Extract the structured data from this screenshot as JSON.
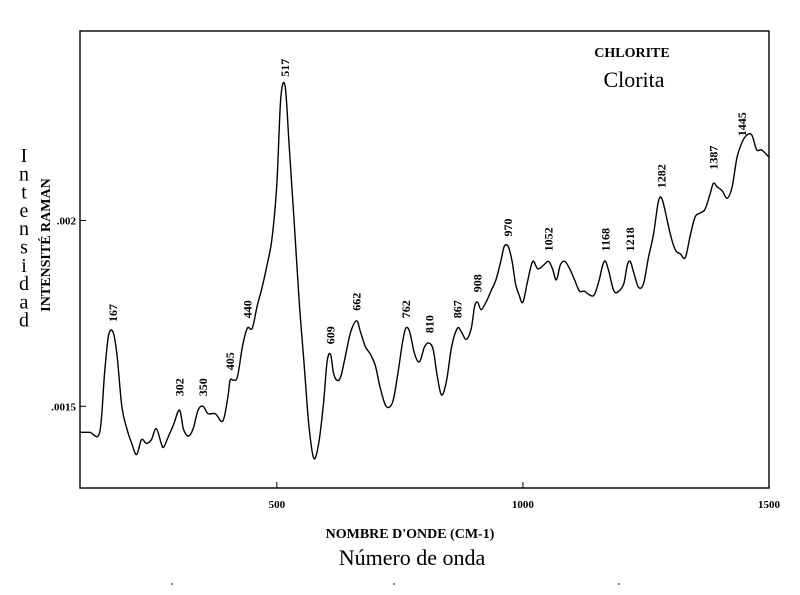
{
  "chart_data": {
    "type": "line",
    "title": "CHLORITE",
    "subtitle": "Clorita",
    "xlabel": "NOMBRE D'ONDE (CM-1)",
    "xlabel_es": "Número de onda",
    "ylabel": "INTENSITÉ RAMAN",
    "ylabel_es": "Intensidad",
    "xlim": [
      100,
      1500
    ],
    "ylim": [
      0.00128,
      0.00251
    ],
    "x_ticks": [
      500,
      1000,
      1500
    ],
    "x_tick_labels": [
      "500",
      "1000",
      "1500"
    ],
    "y_ticks": [
      0.0015,
      0.002
    ],
    "y_tick_labels": [
      ".0015",
      ".002"
    ],
    "grid": false,
    "line_color": "#000000",
    "peak_labels": [
      {
        "x": 167,
        "y": 0.0017,
        "label": "167"
      },
      {
        "x": 302,
        "y": 0.0015,
        "label": "302"
      },
      {
        "x": 350,
        "y": 0.0015,
        "label": "350"
      },
      {
        "x": 405,
        "y": 0.00157,
        "label": "405"
      },
      {
        "x": 440,
        "y": 0.00171,
        "label": "440"
      },
      {
        "x": 517,
        "y": 0.00236,
        "label": "517"
      },
      {
        "x": 609,
        "y": 0.00164,
        "label": "609"
      },
      {
        "x": 662,
        "y": 0.00173,
        "label": "662"
      },
      {
        "x": 762,
        "y": 0.00171,
        "label": "762"
      },
      {
        "x": 810,
        "y": 0.00167,
        "label": "810"
      },
      {
        "x": 867,
        "y": 0.00171,
        "label": "867"
      },
      {
        "x": 908,
        "y": 0.00178,
        "label": "908"
      },
      {
        "x": 970,
        "y": 0.00193,
        "label": "970"
      },
      {
        "x": 1052,
        "y": 0.00189,
        "label": "1052"
      },
      {
        "x": 1168,
        "y": 0.00189,
        "label": "1168"
      },
      {
        "x": 1218,
        "y": 0.00189,
        "label": "1218"
      },
      {
        "x": 1282,
        "y": 0.00206,
        "label": "1282"
      },
      {
        "x": 1387,
        "y": 0.00211,
        "label": "1387"
      },
      {
        "x": 1445,
        "y": 0.0022,
        "label": "1445"
      }
    ],
    "series": [
      {
        "x": [
          100,
          120,
          140,
          150,
          158,
          167,
          175,
          185,
          195,
          205,
          215,
          225,
          235,
          245,
          255,
          265,
          270,
          280,
          290,
          302,
          310,
          320,
          330,
          340,
          350,
          360,
          375,
          390,
          400,
          405,
          412,
          420,
          430,
          440,
          450,
          460,
          470,
          480,
          490,
          500,
          508,
          517,
          525,
          535,
          545,
          555,
          565,
          575,
          585,
          595,
          602,
          609,
          615,
          622,
          630,
          640,
          650,
          662,
          670,
          680,
          690,
          700,
          710,
          722,
          735,
          745,
          755,
          762,
          770,
          780,
          790,
          800,
          810,
          818,
          826,
          835,
          845,
          855,
          867,
          875,
          885,
          895,
          902,
          908,
          915,
          925,
          935,
          945,
          955,
          962,
          970,
          978,
          985,
          992,
          1000,
          1010,
          1020,
          1030,
          1042,
          1052,
          1060,
          1068,
          1076,
          1085,
          1095,
          1105,
          1115,
          1125,
          1135,
          1145,
          1155,
          1162,
          1168,
          1175,
          1185,
          1195,
          1205,
          1212,
          1218,
          1225,
          1235,
          1245,
          1255,
          1265,
          1275,
          1282,
          1290,
          1300,
          1310,
          1320,
          1330,
          1340,
          1350,
          1360,
          1370,
          1380,
          1387,
          1395,
          1405,
          1415,
          1425,
          1435,
          1445,
          1455,
          1465,
          1475,
          1485,
          1500
        ],
        "y": [
          0.00143,
          0.00143,
          0.00143,
          0.00159,
          0.00169,
          0.0017,
          0.00164,
          0.0015,
          0.00144,
          0.0014,
          0.00137,
          0.00141,
          0.0014,
          0.00141,
          0.00144,
          0.0014,
          0.00139,
          0.00142,
          0.00145,
          0.00149,
          0.00144,
          0.00142,
          0.00144,
          0.00149,
          0.0015,
          0.00148,
          0.00148,
          0.00146,
          0.00152,
          0.00157,
          0.00157,
          0.00158,
          0.00166,
          0.00171,
          0.00171,
          0.00177,
          0.00182,
          0.00188,
          0.00195,
          0.0021,
          0.00233,
          0.00236,
          0.0022,
          0.002,
          0.00179,
          0.00162,
          0.00145,
          0.00136,
          0.0014,
          0.00151,
          0.00162,
          0.00164,
          0.00159,
          0.00157,
          0.00158,
          0.00164,
          0.0017,
          0.00173,
          0.0017,
          0.00166,
          0.00164,
          0.00161,
          0.00155,
          0.0015,
          0.00151,
          0.00158,
          0.00167,
          0.00171,
          0.0017,
          0.00164,
          0.00162,
          0.00166,
          0.00167,
          0.00165,
          0.00158,
          0.00153,
          0.00157,
          0.00166,
          0.00171,
          0.0017,
          0.00168,
          0.00171,
          0.00177,
          0.00178,
          0.00176,
          0.00178,
          0.00181,
          0.00184,
          0.00189,
          0.00193,
          0.00193,
          0.00189,
          0.00183,
          0.0018,
          0.00178,
          0.00184,
          0.00189,
          0.00187,
          0.00188,
          0.00189,
          0.00187,
          0.00184,
          0.00188,
          0.00189,
          0.00187,
          0.00184,
          0.00181,
          0.00181,
          0.0018,
          0.0018,
          0.00184,
          0.00188,
          0.00189,
          0.00186,
          0.00181,
          0.00181,
          0.00183,
          0.00188,
          0.00189,
          0.00186,
          0.00182,
          0.00183,
          0.0019,
          0.00196,
          0.00205,
          0.00206,
          0.00202,
          0.00196,
          0.00192,
          0.00191,
          0.0019,
          0.00196,
          0.00201,
          0.00202,
          0.00203,
          0.00207,
          0.0021,
          0.00209,
          0.00208,
          0.00206,
          0.00209,
          0.00217,
          0.00221,
          0.00223,
          0.00223,
          0.00219,
          0.00219,
          0.00217
        ]
      }
    ]
  }
}
